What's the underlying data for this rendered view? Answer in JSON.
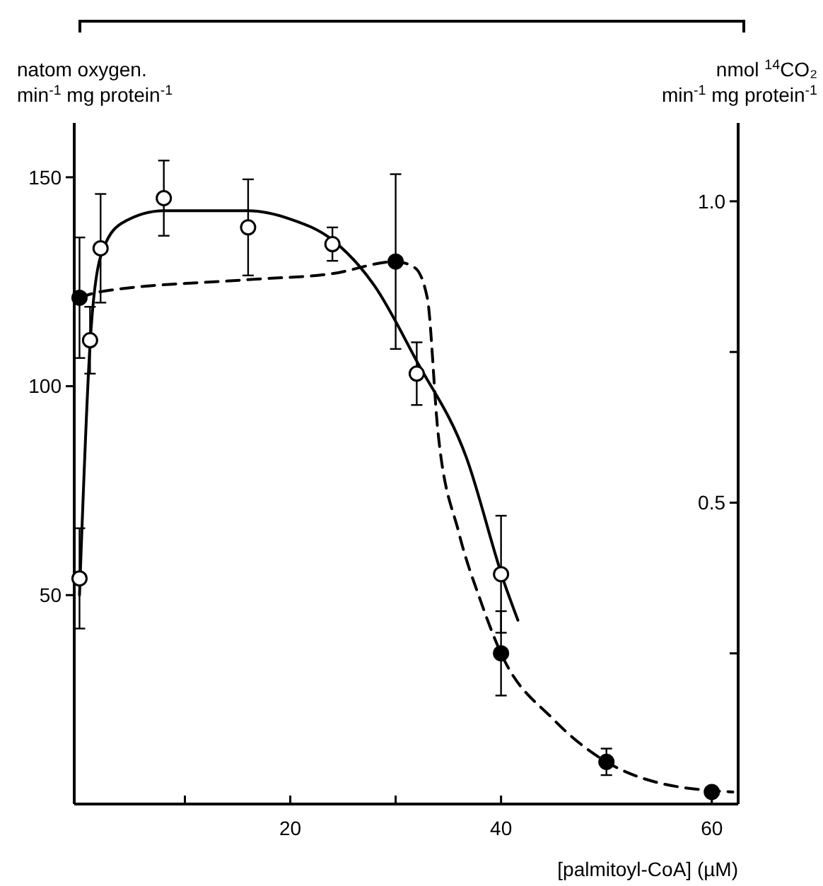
{
  "chart_data": {
    "type": "scatter",
    "ylabel": "natom oxygen.\nmin$^{-1}$ mg protein$^{-1}$",
    "y2label": "nmol $^{14}$CO₂\nmin$^{-1}$  mg protein$^{-1}$",
    "xlabel": "[palmitoyl-CoA]  (µM)",
    "xlim": [
      -0.5,
      62.5
    ],
    "xticks": [
      {
        "value": 10,
        "label": null
      },
      20,
      {
        "value": 30,
        "label": null
      },
      40,
      60
    ],
    "ylim": [
      0,
      163
    ],
    "yticks": [
      50,
      100,
      150
    ],
    "y2lim": [
      0,
      1.13
    ],
    "y2ticks": [
      {
        "value": 0.25,
        "label": null
      },
      {
        "value": 0.5,
        "label": "0.5"
      },
      {
        "value": 0.75,
        "label": null
      },
      {
        "value": 1.0,
        "label": "1.0"
      }
    ],
    "grid": false,
    "series": [
      {
        "type": "scatter",
        "color": "#ffffff",
        "marker": "circle",
        "x": [
          0,
          1,
          2,
          8,
          16,
          24,
          32,
          40
        ],
        "values": [
          54,
          111,
          133,
          145,
          138,
          134,
          103,
          55
        ],
        "errors": [
          12,
          8,
          13,
          9,
          11.5,
          4,
          7.5,
          14
        ]
      },
      {
        "type": "scatter",
        "axis": "y2",
        "color": "#000000",
        "marker": "circle",
        "x": [
          0,
          30,
          40,
          50,
          60
        ],
        "values": [
          0.84,
          0.9,
          0.25,
          0.07,
          0.02
        ],
        "errors": [
          0.1,
          0.145,
          0.07,
          0.022,
          null
        ]
      },
      {
        "type": "line",
        "color": "#000000",
        "marker": "none",
        "line_style": "solid",
        "x": [
          0,
          1,
          2,
          4,
          8,
          16,
          20,
          24,
          28,
          32,
          36.7,
          40.3,
          41.6
        ],
        "values": [
          50,
          110,
          131,
          139,
          142,
          142,
          140,
          135,
          124,
          106,
          83,
          53,
          44
        ]
      },
      {
        "type": "line",
        "axis": "y2",
        "color": "#000000",
        "marker": "none",
        "line_style": "dashed",
        "x": [
          0,
          2,
          16,
          24,
          30,
          31.8,
          33,
          34,
          36,
          38,
          40,
          45,
          50,
          55,
          62
        ],
        "values": [
          0.84,
          0.85,
          0.87,
          0.88,
          0.9,
          0.89,
          0.84,
          0.62,
          0.45,
          0.34,
          0.25,
          0.14,
          0.07,
          0.035,
          0.02
        ]
      }
    ]
  }
}
